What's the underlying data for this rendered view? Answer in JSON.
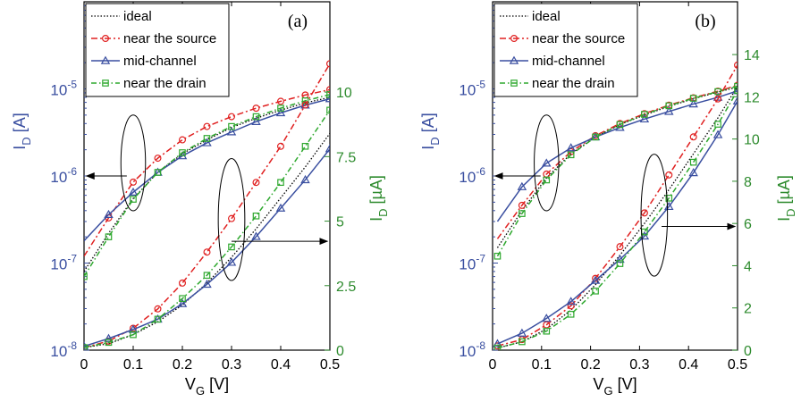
{
  "figure": {
    "caption": ""
  },
  "colors": {
    "ideal": "#000000",
    "source": "#e02020",
    "mid": "#3a4fa0",
    "drain": "#2ea82e",
    "left_axis": "#3a4fa0",
    "right_axis": "#2e8b2e"
  },
  "chart_data": [
    {
      "type": "line",
      "panel_label": "(a)",
      "xlabel": "V",
      "xlabel_sub": "G",
      "xlabel_unit": " [V]",
      "ylabel_left": "I",
      "ylabel_left_sub": "D",
      "ylabel_left_unit": " [A]",
      "ylabel_right": "I",
      "ylabel_right_sub": "D",
      "ylabel_right_unit": " [µA]",
      "xlim": [
        0,
        0.5
      ],
      "ylim_left_log10": [
        -8,
        -4
      ],
      "ylim_right": [
        0,
        13.5
      ],
      "yscale_left": "log",
      "x_ticks": [
        "0",
        "0.1",
        "0.2",
        "0.3",
        "0.4",
        "0.5"
      ],
      "y_left_ticks": [
        {
          "base": "10",
          "exp": "-8"
        },
        {
          "base": "10",
          "exp": "-7"
        },
        {
          "base": "10",
          "exp": "-6"
        },
        {
          "base": "10",
          "exp": "-5"
        }
      ],
      "y_right_ticks": [
        "0",
        "2.5",
        "5",
        "7.5",
        "10"
      ],
      "y_right_tick_values": [
        0,
        2.5,
        5,
        7.5,
        10
      ],
      "legend_position": "top-left",
      "x": [
        0,
        0.05,
        0.1,
        0.15,
        0.2,
        0.25,
        0.3,
        0.35,
        0.4,
        0.45,
        0.5
      ],
      "series": [
        {
          "name": "ideal",
          "key": "ideal",
          "axis": "left",
          "marker": "none",
          "dash": "1.5,2",
          "values": [
            8e-08,
            2.2e-07,
            5.5e-07,
            1.1e-06,
            1.8e-06,
            2.6e-06,
            3.6e-06,
            4.6e-06,
            5.7e-06,
            6.9e-06,
            8e-06
          ]
        },
        {
          "name": "near the source",
          "key": "source",
          "axis": "left",
          "marker": "circle",
          "dash": "7,3,2,3",
          "values": [
            1.2e-07,
            3.3e-07,
            8.5e-07,
            1.6e-06,
            2.6e-06,
            3.7e-06,
            4.8e-06,
            6e-06,
            7.2e-06,
            8.5e-06,
            9.8e-06
          ]
        },
        {
          "name": "mid-channel",
          "key": "mid",
          "axis": "left",
          "marker": "triangle",
          "dash": "",
          "values": [
            1.8e-07,
            3.6e-07,
            6.5e-07,
            1.1e-06,
            1.7e-06,
            2.4e-06,
            3.2e-06,
            4.2e-06,
            5.3e-06,
            6.5e-06,
            7.7e-06
          ]
        },
        {
          "name": "near the drain",
          "key": "drain",
          "axis": "left",
          "marker": "square",
          "dash": "6,3,1.5,3",
          "values": [
            7e-08,
            2e-07,
            5.4e-07,
            1.1e-06,
            1.85e-06,
            2.7e-06,
            3.7e-06,
            4.8e-06,
            6e-06,
            7.3e-06,
            8.6e-06
          ]
        },
        {
          "name": "ideal",
          "key": "ideal",
          "axis": "right",
          "marker": "none",
          "dash": "1.5,2",
          "values": [
            0.1,
            0.25,
            0.6,
            1.1,
            1.75,
            2.6,
            3.6,
            4.7,
            5.9,
            7.1,
            8.4
          ]
        },
        {
          "name": "near the source",
          "key": "source",
          "axis": "right",
          "marker": "circle",
          "dash": "7,3,2,3",
          "values": [
            0.1,
            0.35,
            0.85,
            1.6,
            2.6,
            3.8,
            5.1,
            6.5,
            7.9,
            9.5,
            11.1
          ]
        },
        {
          "name": "mid-channel",
          "key": "mid",
          "axis": "right",
          "marker": "triangle",
          "dash": "",
          "values": [
            0.15,
            0.45,
            0.8,
            1.2,
            1.8,
            2.55,
            3.4,
            4.4,
            5.5,
            6.6,
            7.8
          ]
        },
        {
          "name": "near the drain",
          "key": "drain",
          "axis": "right",
          "marker": "square",
          "dash": "6,3,1.5,3",
          "values": [
            0.1,
            0.3,
            0.6,
            1.2,
            2.0,
            2.9,
            4.0,
            5.2,
            6.5,
            7.9,
            9.3
          ]
        }
      ],
      "annotations": [
        {
          "type": "ellipse",
          "cx": 0.1,
          "cy_log10": -5.85,
          "rx": 0.025,
          "ry_decades": 0.55
        },
        {
          "type": "arrow",
          "from_x": 0.087,
          "from_log10": -6.0,
          "to_x": 0.005,
          "to_log10": -6.0
        },
        {
          "type": "ellipse",
          "cx": 0.3,
          "cy_log10": -6.5,
          "rx": 0.027,
          "ry_decades": 0.7
        },
        {
          "type": "arrow",
          "from_x": 0.3,
          "from_log10": -6.75,
          "to_x": 0.495,
          "to_log10": -6.75
        }
      ]
    },
    {
      "type": "line",
      "panel_label": "(b)",
      "xlabel": "V",
      "xlabel_sub": "G",
      "xlabel_unit": " [V]",
      "ylabel_left": "I",
      "ylabel_left_sub": "D",
      "ylabel_left_unit": " [A]",
      "ylabel_right": "I",
      "ylabel_right_sub": "D",
      "ylabel_right_unit": " [µA]",
      "xlim": [
        0,
        0.5
      ],
      "ylim_left_log10": [
        -8,
        -4
      ],
      "ylim_right": [
        0,
        16.5
      ],
      "yscale_left": "log",
      "x_ticks": [
        "0",
        "0.1",
        "0.2",
        "0.3",
        "0.4",
        "0.5"
      ],
      "y_left_ticks": [
        {
          "base": "10",
          "exp": "-8"
        },
        {
          "base": "10",
          "exp": "-7"
        },
        {
          "base": "10",
          "exp": "-6"
        },
        {
          "base": "10",
          "exp": "-5"
        }
      ],
      "y_right_ticks": [
        "0",
        "2",
        "4",
        "6",
        "8",
        "10",
        "12",
        "14"
      ],
      "y_right_tick_values": [
        0,
        2,
        4,
        6,
        8,
        10,
        12,
        14
      ],
      "legend_position": "top-left",
      "x": [
        0.01,
        0.06,
        0.11,
        0.16,
        0.21,
        0.26,
        0.31,
        0.36,
        0.41,
        0.46,
        0.5
      ],
      "series": [
        {
          "name": "ideal",
          "key": "ideal",
          "axis": "left",
          "marker": "none",
          "dash": "1.5,2",
          "values": [
            1.5e-07,
            4e-07,
            9.5e-07,
            1.8e-06,
            2.8e-06,
            3.9e-06,
            5e-06,
            6.3e-06,
            7.7e-06,
            9.2e-06,
            1.05e-05
          ]
        },
        {
          "name": "near the source",
          "key": "source",
          "axis": "left",
          "marker": "circle",
          "dash": "7,3,2,3",
          "values": [
            1.9e-07,
            4.6e-07,
            1.05e-06,
            1.9e-06,
            2.9e-06,
            4e-06,
            5.2e-06,
            6.5e-06,
            7.9e-06,
            9.4e-06,
            1.1e-05
          ]
        },
        {
          "name": "mid-channel",
          "key": "mid",
          "axis": "left",
          "marker": "triangle",
          "dash": "",
          "values": [
            3e-07,
            7.5e-07,
            1.4e-06,
            2.1e-06,
            2.8e-06,
            3.6e-06,
            4.5e-06,
            5.5e-06,
            6.7e-06,
            8e-06,
            9.5e-06
          ]
        },
        {
          "name": "near the drain",
          "key": "drain",
          "axis": "left",
          "marker": "square",
          "dash": "6,3,1.5,3",
          "values": [
            1.2e-07,
            3.7e-07,
            9e-07,
            1.75e-06,
            2.8e-06,
            3.9e-06,
            5.1e-06,
            6.4e-06,
            7.8e-06,
            9.3e-06,
            1.07e-05
          ]
        },
        {
          "name": "ideal",
          "key": "ideal",
          "axis": "right",
          "marker": "none",
          "dash": "1.5,2",
          "values": [
            0.1,
            0.4,
            1.0,
            1.9,
            3.1,
            4.5,
            6.0,
            7.6,
            9.3,
            11.0,
            12.5
          ]
        },
        {
          "name": "near the source",
          "key": "source",
          "axis": "right",
          "marker": "circle",
          "dash": "7,3,2,3",
          "values": [
            0.2,
            0.5,
            1.2,
            2.1,
            3.4,
            4.9,
            6.5,
            8.3,
            10.1,
            11.9,
            13.5
          ]
        },
        {
          "name": "mid-channel",
          "key": "mid",
          "axis": "right",
          "marker": "triangle",
          "dash": "",
          "values": [
            0.3,
            0.8,
            1.5,
            2.3,
            3.3,
            4.3,
            5.4,
            6.8,
            8.4,
            10.2,
            11.8
          ]
        },
        {
          "name": "near the drain",
          "key": "drain",
          "axis": "right",
          "marker": "square",
          "dash": "6,3,1.5,3",
          "values": [
            0.1,
            0.4,
            0.9,
            1.7,
            2.8,
            4.1,
            5.6,
            7.2,
            8.9,
            10.7,
            12.3
          ]
        }
      ],
      "annotations": [
        {
          "type": "ellipse",
          "cx": 0.11,
          "cy_log10": -5.85,
          "rx": 0.025,
          "ry_decades": 0.55
        },
        {
          "type": "arrow",
          "from_x": 0.098,
          "from_log10": -6.0,
          "to_x": 0.005,
          "to_log10": -6.0
        },
        {
          "type": "ellipse",
          "cx": 0.33,
          "cy_log10": -6.45,
          "rx": 0.027,
          "ry_decades": 0.7
        },
        {
          "type": "arrow",
          "from_x": 0.345,
          "from_log10": -6.58,
          "to_x": 0.495,
          "to_log10": -6.58
        }
      ]
    }
  ]
}
